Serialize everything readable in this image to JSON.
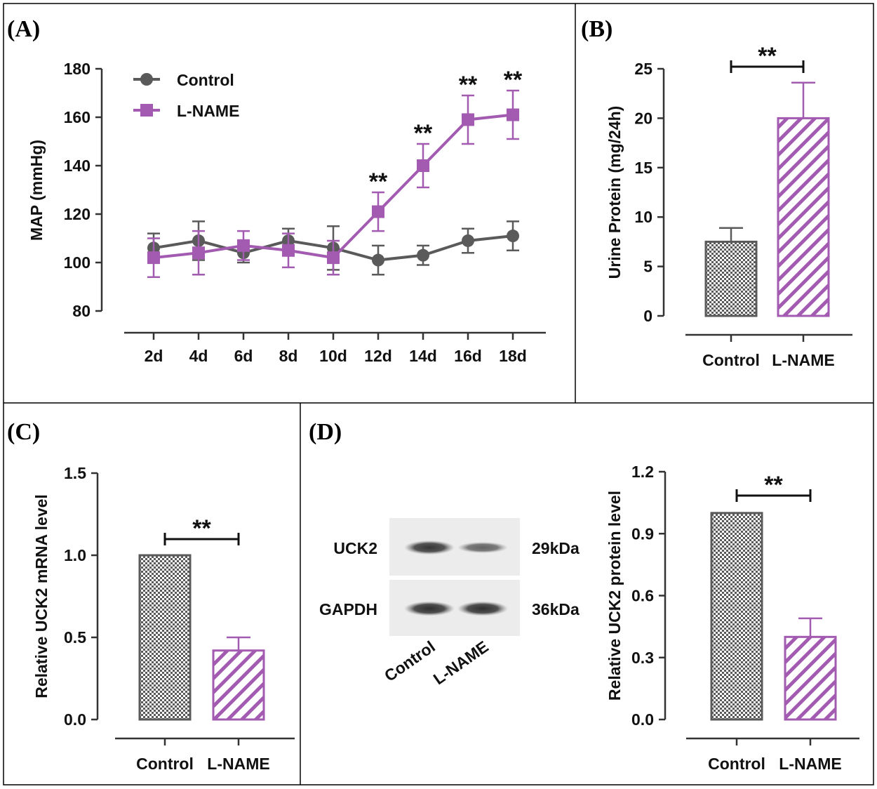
{
  "colors": {
    "control": "#5a5a5a",
    "lname": "#a25bb0"
  },
  "panels": {
    "a": "(A)",
    "b": "(B)",
    "c": "(C)",
    "d": "(D)"
  },
  "chart_data": [
    {
      "id": "A",
      "type": "line",
      "ylabel": "MAP (mmHg)",
      "categories": [
        "2d",
        "4d",
        "6d",
        "8d",
        "10d",
        "12d",
        "14d",
        "16d",
        "18d"
      ],
      "ylim": [
        80,
        180
      ],
      "yticks": [
        80,
        100,
        120,
        140,
        160,
        180
      ],
      "series": [
        {
          "name": "Control",
          "marker": "circle",
          "values": [
            106,
            109,
            104,
            109,
            106,
            101,
            103,
            109,
            111
          ],
          "errors": [
            6,
            8,
            4,
            5,
            9,
            6,
            4,
            5,
            6
          ]
        },
        {
          "name": "L-NAME",
          "marker": "square",
          "values": [
            102,
            104,
            107,
            105,
            102,
            121,
            140,
            159,
            161
          ],
          "errors": [
            8,
            9,
            6,
            7,
            7,
            8,
            9,
            10,
            10
          ]
        }
      ],
      "significance": [
        "",
        "",
        "",
        "",
        "",
        "**",
        "**",
        "**",
        "**"
      ],
      "legend_position": "top-left"
    },
    {
      "id": "B",
      "type": "bar",
      "ylabel": "Urine Protein (mg/24h)",
      "categories": [
        "Control",
        "L-NAME"
      ],
      "values": [
        7.5,
        20
      ],
      "errors": [
        1.4,
        3.6
      ],
      "ylim": [
        0,
        25
      ],
      "yticks": [
        0,
        5,
        10,
        15,
        20,
        25
      ],
      "significance": "**"
    },
    {
      "id": "C",
      "type": "bar",
      "ylabel": "Relative UCK2 mRNA level",
      "categories": [
        "Control",
        "L-NAME"
      ],
      "values": [
        1.0,
        0.42
      ],
      "errors": [
        0,
        0.08
      ],
      "ylim": [
        0,
        1.5
      ],
      "yticks": [
        0.0,
        0.5,
        1.0,
        1.5
      ],
      "tick_labels": [
        "0.0",
        "0.5",
        "1.0",
        "1.5"
      ],
      "significance": "**"
    },
    {
      "id": "D",
      "type": "bar",
      "ylabel": "Relative UCK2 protein level",
      "categories": [
        "Control",
        "L-NAME"
      ],
      "values": [
        1.0,
        0.4
      ],
      "errors": [
        0,
        0.09
      ],
      "ylim": [
        0,
        1.2
      ],
      "yticks": [
        0.0,
        0.3,
        0.6,
        0.9,
        1.2
      ],
      "tick_labels": [
        "0.0",
        "0.3",
        "0.6",
        "0.9",
        "1.2"
      ],
      "significance": "**"
    }
  ],
  "blot": {
    "rows": [
      {
        "label": "UCK2",
        "kda": "29kDa",
        "intensity": [
          0.85,
          0.5
        ]
      },
      {
        "label": "GAPDH",
        "kda": "36kDa",
        "intensity": [
          0.9,
          0.9
        ]
      }
    ],
    "lanes": [
      "Control",
      "L-NAME"
    ]
  }
}
